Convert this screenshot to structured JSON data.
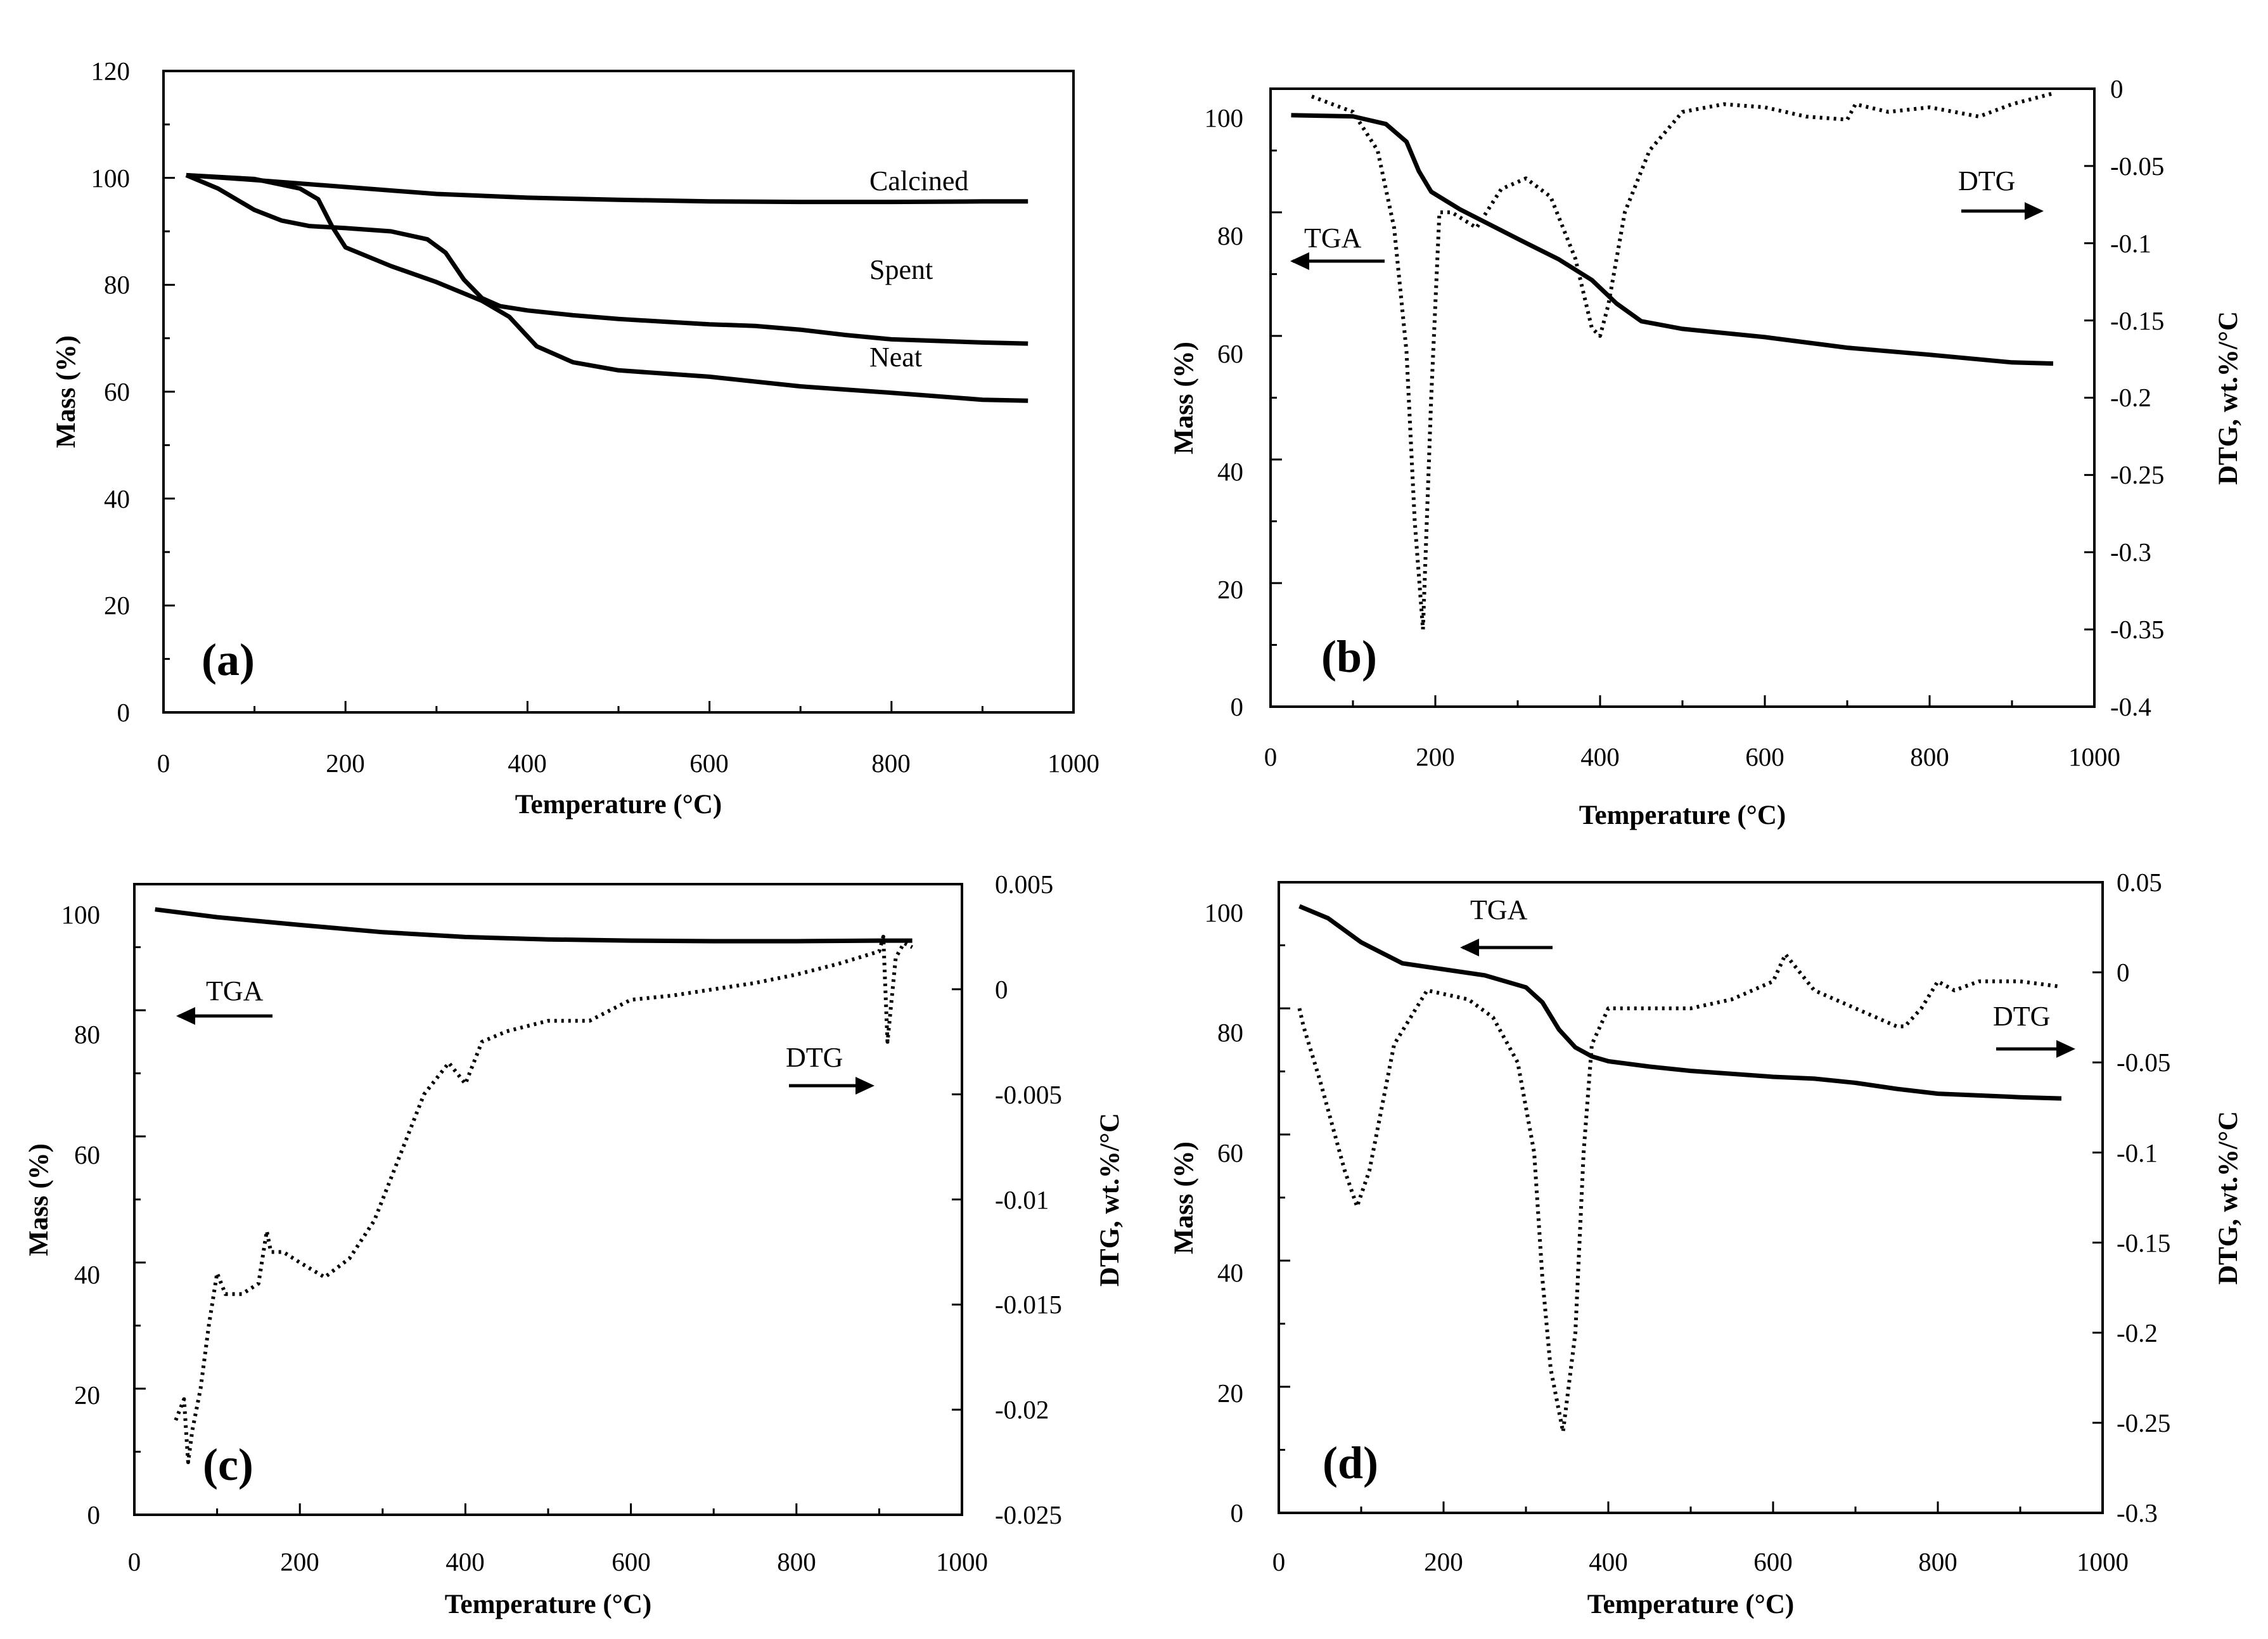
{
  "chart_data": [
    {
      "id": "a",
      "type": "line",
      "panel_label": "(a)",
      "xlabel": "Temperature (°C)",
      "ylabel": "Mass (%)",
      "xlim": [
        0,
        1000
      ],
      "ylim": [
        0,
        120
      ],
      "xticks": [
        "0",
        "200",
        "400",
        "600",
        "800",
        "1000"
      ],
      "yticks": [
        "0",
        "20",
        "40",
        "60",
        "80",
        "100",
        "120"
      ],
      "series": [
        {
          "name": "Calcined",
          "axis": "left",
          "style": "solid",
          "x": [
            25,
            100,
            200,
            300,
            400,
            500,
            600,
            700,
            800,
            900,
            950
          ],
          "y": [
            100.5,
            99.6,
            98.3,
            97.0,
            96.3,
            95.9,
            95.6,
            95.5,
            95.5,
            95.6,
            95.6
          ]
        },
        {
          "name": "Spent",
          "axis": "left",
          "style": "solid",
          "x": [
            25,
            60,
            100,
            130,
            160,
            200,
            250,
            290,
            310,
            330,
            350,
            370,
            400,
            450,
            500,
            600,
            650,
            700,
            750,
            800,
            900,
            950
          ],
          "y": [
            100.5,
            98,
            94,
            92,
            91,
            90.6,
            90,
            88.5,
            86,
            81,
            77.5,
            76,
            75.2,
            74.3,
            73.6,
            72.6,
            72.3,
            71.6,
            70.6,
            69.8,
            69.2,
            69.0
          ]
        },
        {
          "name": "Neat",
          "axis": "left",
          "style": "solid",
          "x": [
            25,
            100,
            150,
            170,
            185,
            200,
            250,
            300,
            350,
            380,
            410,
            450,
            500,
            600,
            700,
            800,
            900,
            950
          ],
          "y": [
            100.5,
            99.8,
            98,
            96,
            91,
            87,
            83.5,
            80.5,
            77,
            74,
            68.5,
            65.5,
            64,
            62.8,
            61,
            59.8,
            58.5,
            58.3
          ]
        }
      ],
      "annotations": [
        "Calcined",
        "Spent",
        "Neat"
      ]
    },
    {
      "id": "b",
      "type": "line",
      "panel_label": "(b)",
      "xlabel": "Temperature (°C)",
      "ylabel": "Mass (%)",
      "y2label": "DTG, wt.%/°C",
      "xlim": [
        0,
        1000
      ],
      "ylim": [
        0,
        105
      ],
      "y2lim": [
        -0.4,
        0
      ],
      "xticks": [
        "0",
        "200",
        "400",
        "600",
        "800",
        "1000"
      ],
      "yticks": [
        "0",
        "20",
        "40",
        "60",
        "80",
        "100"
      ],
      "y2ticks": [
        "0",
        "-0.05",
        "-0.1",
        "-0.15",
        "-0.2",
        "-0.25",
        "-0.3",
        "-0.35",
        "-0.4"
      ],
      "series": [
        {
          "name": "TGA",
          "axis": "left",
          "style": "solid",
          "x": [
            25,
            100,
            140,
            165,
            180,
            195,
            230,
            300,
            350,
            390,
            420,
            450,
            500,
            600,
            700,
            800,
            900,
            950
          ],
          "y": [
            100.5,
            100.3,
            99,
            96,
            91,
            87.5,
            84.5,
            79.5,
            76,
            72.5,
            68.5,
            65.5,
            64.2,
            62.8,
            61,
            59.8,
            58.5,
            58.3
          ]
        },
        {
          "name": "DTG",
          "axis": "right",
          "style": "dotted",
          "x": [
            50,
            100,
            130,
            150,
            165,
            175,
            185,
            195,
            205,
            220,
            250,
            280,
            310,
            340,
            370,
            390,
            400,
            410,
            430,
            460,
            500,
            550,
            600,
            650,
            700,
            710,
            750,
            800,
            860,
            900,
            950
          ],
          "y": [
            -0.005,
            -0.015,
            -0.04,
            -0.09,
            -0.17,
            -0.28,
            -0.35,
            -0.2,
            -0.08,
            -0.08,
            -0.09,
            -0.065,
            -0.058,
            -0.07,
            -0.11,
            -0.155,
            -0.16,
            -0.14,
            -0.08,
            -0.04,
            -0.015,
            -0.01,
            -0.012,
            -0.018,
            -0.02,
            -0.01,
            -0.015,
            -0.012,
            -0.018,
            -0.01,
            -0.003
          ]
        }
      ],
      "annotations": [
        "TGA",
        "DTG"
      ]
    },
    {
      "id": "c",
      "type": "line",
      "panel_label": "(c)",
      "xlabel": "Temperature (°C)",
      "ylabel": "Mass (%)",
      "y2label": "DTG, wt.%/°C",
      "xlim": [
        0,
        1000
      ],
      "ylim": [
        0,
        105
      ],
      "y2lim": [
        -0.025,
        0.005
      ],
      "xticks": [
        "0",
        "200",
        "400",
        "600",
        "800",
        "1000"
      ],
      "yticks": [
        "0",
        "20",
        "40",
        "60",
        "80",
        "100"
      ],
      "y2ticks": [
        "0.005",
        "0",
        "-0.005",
        "-0.01",
        "-0.015",
        "-0.02",
        "-0.025"
      ],
      "series": [
        {
          "name": "TGA",
          "axis": "left",
          "style": "solid",
          "x": [
            25,
            100,
            200,
            300,
            400,
            500,
            600,
            700,
            800,
            900,
            940
          ],
          "y": [
            100.8,
            99.5,
            98.2,
            97.0,
            96.2,
            95.8,
            95.6,
            95.5,
            95.5,
            95.6,
            95.6
          ]
        },
        {
          "name": "DTG",
          "axis": "right",
          "style": "dotted",
          "x": [
            50,
            60,
            65,
            70,
            80,
            90,
            100,
            110,
            130,
            150,
            160,
            165,
            180,
            200,
            230,
            260,
            290,
            320,
            350,
            380,
            400,
            420,
            450,
            500,
            550,
            600,
            650,
            700,
            750,
            800,
            850,
            900,
            905,
            910,
            920,
            930,
            940
          ],
          "y": [
            -0.0205,
            -0.0195,
            -0.0225,
            -0.021,
            -0.019,
            -0.016,
            -0.0135,
            -0.0145,
            -0.0145,
            -0.014,
            -0.0115,
            -0.0125,
            -0.0125,
            -0.013,
            -0.0137,
            -0.0128,
            -0.011,
            -0.008,
            -0.005,
            -0.0035,
            -0.0045,
            -0.0025,
            -0.002,
            -0.0015,
            -0.0015,
            -0.0005,
            -0.0003,
            0.0,
            0.0003,
            0.0007,
            0.0012,
            0.0018,
            0.0025,
            -0.0025,
            0.0015,
            0.0022,
            0.002
          ]
        }
      ],
      "annotations": [
        "TGA",
        "DTG"
      ]
    },
    {
      "id": "d",
      "type": "line",
      "panel_label": "(d)",
      "xlabel": "Temperature (°C)",
      "ylabel": "Mass (%)",
      "y2label": "DTG, wt.%/°C",
      "xlim": [
        0,
        1000
      ],
      "ylim": [
        0,
        105
      ],
      "y2lim": [
        -0.3,
        0.05
      ],
      "xticks": [
        "0",
        "200",
        "400",
        "600",
        "800",
        "1000"
      ],
      "yticks": [
        "0",
        "20",
        "40",
        "60",
        "80",
        "100"
      ],
      "y2ticks": [
        "0.05",
        "0",
        "-0.05",
        "-0.1",
        "-0.15",
        "-0.2",
        "-0.25",
        "-0.3"
      ],
      "series": [
        {
          "name": "TGA",
          "axis": "left",
          "style": "solid",
          "x": [
            25,
            60,
            100,
            150,
            200,
            250,
            300,
            320,
            340,
            360,
            380,
            400,
            450,
            500,
            600,
            650,
            700,
            750,
            800,
            900,
            950
          ],
          "y": [
            101,
            99,
            95,
            91.5,
            90.5,
            89.5,
            87.5,
            85,
            80.5,
            77.5,
            76,
            75.2,
            74.3,
            73.6,
            72.6,
            72.3,
            71.6,
            70.6,
            69.8,
            69.2,
            69.0
          ]
        },
        {
          "name": "DTG",
          "axis": "right",
          "style": "dotted",
          "x": [
            25,
            30,
            50,
            80,
            95,
            110,
            140,
            180,
            200,
            230,
            260,
            290,
            310,
            320,
            330,
            345,
            360,
            370,
            380,
            400,
            450,
            500,
            550,
            600,
            615,
            650,
            700,
            750,
            760,
            780,
            800,
            820,
            850,
            900,
            950
          ],
          "y": [
            -0.02,
            -0.03,
            -0.06,
            -0.11,
            -0.13,
            -0.11,
            -0.04,
            -0.01,
            -0.012,
            -0.015,
            -0.025,
            -0.05,
            -0.1,
            -0.17,
            -0.22,
            -0.255,
            -0.2,
            -0.1,
            -0.04,
            -0.02,
            -0.02,
            -0.02,
            -0.015,
            -0.005,
            0.01,
            -0.01,
            -0.02,
            -0.03,
            -0.03,
            -0.02,
            -0.005,
            -0.01,
            -0.005,
            -0.005,
            -0.008
          ]
        }
      ],
      "annotations": [
        "TGA",
        "DTG"
      ]
    }
  ]
}
